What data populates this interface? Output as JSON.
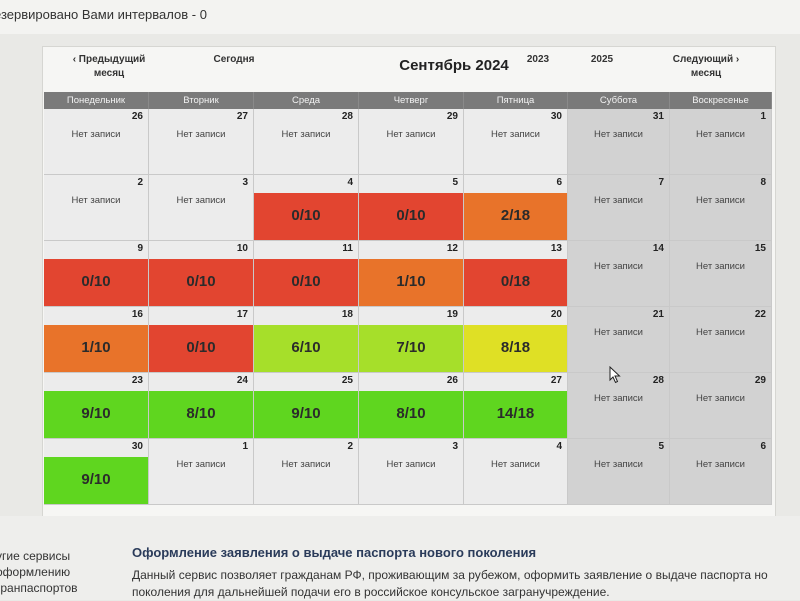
{
  "top": {
    "reserved_text": "езервировано Вами интервалов - 0"
  },
  "calendar": {
    "title": "Сентябрь 2024",
    "nav": {
      "prev_line1": "‹ Предыдущий",
      "prev_line2": "месяц",
      "today": "Сегодня",
      "year_prev": "2023",
      "year_next": "2025",
      "next_line1": "Следующий ›",
      "next_line2": "месяц"
    },
    "weekdays": [
      "Понедельник",
      "Вторник",
      "Среда",
      "Четверг",
      "Пятница",
      "Суббота",
      "Воскресенье"
    ],
    "colors": {
      "red": "#e24530",
      "orange": "#e8732a",
      "yellowgreen": "#a6df2a",
      "yellow": "#dfe025",
      "green": "#5fd61f",
      "empty": "#ececec",
      "weekend": "#d2d2d2"
    },
    "weeks": [
      [
        {
          "day": "26",
          "text": "Нет записи",
          "color": "empty"
        },
        {
          "day": "27",
          "text": "Нет записи",
          "color": "empty"
        },
        {
          "day": "28",
          "text": "Нет записи",
          "color": "empty"
        },
        {
          "day": "29",
          "text": "Нет записи",
          "color": "empty"
        },
        {
          "day": "30",
          "text": "Нет записи",
          "color": "empty"
        },
        {
          "day": "31",
          "text": "Нет записи",
          "color": "weekend"
        },
        {
          "day": "1",
          "text": "Нет записи",
          "color": "weekend"
        }
      ],
      [
        {
          "day": "2",
          "text": "Нет записи",
          "color": "empty"
        },
        {
          "day": "3",
          "text": "Нет записи",
          "color": "empty"
        },
        {
          "day": "4",
          "text": "0/10",
          "color": "red"
        },
        {
          "day": "5",
          "text": "0/10",
          "color": "red"
        },
        {
          "day": "6",
          "text": "2/18",
          "color": "orange"
        },
        {
          "day": "7",
          "text": "Нет записи",
          "color": "weekend"
        },
        {
          "day": "8",
          "text": "Нет записи",
          "color": "weekend"
        }
      ],
      [
        {
          "day": "9",
          "text": "0/10",
          "color": "red"
        },
        {
          "day": "10",
          "text": "0/10",
          "color": "red"
        },
        {
          "day": "11",
          "text": "0/10",
          "color": "red"
        },
        {
          "day": "12",
          "text": "1/10",
          "color": "orange"
        },
        {
          "day": "13",
          "text": "0/18",
          "color": "red"
        },
        {
          "day": "14",
          "text": "Нет записи",
          "color": "weekend"
        },
        {
          "day": "15",
          "text": "Нет записи",
          "color": "weekend"
        }
      ],
      [
        {
          "day": "16",
          "text": "1/10",
          "color": "orange"
        },
        {
          "day": "17",
          "text": "0/10",
          "color": "red"
        },
        {
          "day": "18",
          "text": "6/10",
          "color": "yellowgreen"
        },
        {
          "day": "19",
          "text": "7/10",
          "color": "yellowgreen"
        },
        {
          "day": "20",
          "text": "8/18",
          "color": "yellow"
        },
        {
          "day": "21",
          "text": "Нет записи",
          "color": "weekend"
        },
        {
          "day": "22",
          "text": "Нет записи",
          "color": "weekend"
        }
      ],
      [
        {
          "day": "23",
          "text": "9/10",
          "color": "green"
        },
        {
          "day": "24",
          "text": "8/10",
          "color": "green"
        },
        {
          "day": "25",
          "text": "9/10",
          "color": "green"
        },
        {
          "day": "26",
          "text": "8/10",
          "color": "green"
        },
        {
          "day": "27",
          "text": "14/18",
          "color": "green"
        },
        {
          "day": "28",
          "text": "Нет записи",
          "color": "weekend"
        },
        {
          "day": "29",
          "text": "Нет записи",
          "color": "weekend"
        }
      ],
      [
        {
          "day": "30",
          "text": "9/10",
          "color": "green"
        },
        {
          "day": "1",
          "text": "Нет записи",
          "color": "empty"
        },
        {
          "day": "2",
          "text": "Нет записи",
          "color": "empty"
        },
        {
          "day": "3",
          "text": "Нет записи",
          "color": "empty"
        },
        {
          "day": "4",
          "text": "Нет записи",
          "color": "empty"
        },
        {
          "day": "5",
          "text": "Нет записи",
          "color": "weekend"
        },
        {
          "day": "6",
          "text": "Нет записи",
          "color": "weekend"
        }
      ]
    ]
  },
  "footer": {
    "side_line1": "угие сервисы",
    "side_line2": "оформлению",
    "side_line3": "гранпаспортов",
    "service_title": "Оформление заявления о выдаче паспорта нового поколения",
    "service_text_line1": "Данный сервис позволяет гражданам РФ, проживающим за рубежом, оформить заявление о выдаче паспорта но",
    "service_text_line2": "поколения для дальнейшей подачи его в российское консульское загранучреждение."
  }
}
